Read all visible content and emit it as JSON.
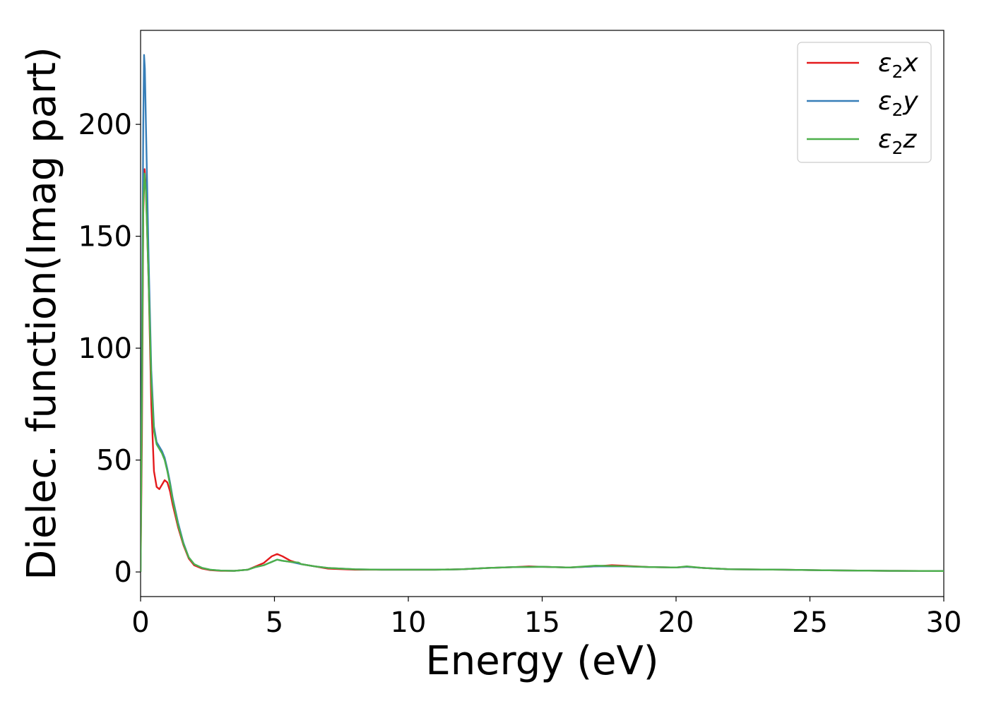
{
  "chart_data": {
    "type": "line",
    "title": "",
    "xlabel": "Energy (eV)",
    "ylabel": "Dielec. function(Imag part)",
    "xlim": [
      0,
      30
    ],
    "ylim": [
      -11,
      242
    ],
    "xticks": [
      0,
      5,
      10,
      15,
      20,
      25,
      30
    ],
    "xtick_labels": [
      "0",
      "5",
      "10",
      "15",
      "20",
      "25",
      "30"
    ],
    "yticks": [
      0,
      50,
      100,
      150,
      200
    ],
    "ytick_labels": [
      "0",
      "50",
      "100",
      "150",
      "200"
    ],
    "grid": false,
    "legend_position": "top-right",
    "series": [
      {
        "name": "ε₂x",
        "legend_main": "ε",
        "legend_sub": "2",
        "legend_suffix": "x",
        "color": "#e41a1c",
        "points": [
          [
            0,
            0
          ],
          [
            0.05,
            60
          ],
          [
            0.1,
            160
          ],
          [
            0.15,
            180
          ],
          [
            0.2,
            172
          ],
          [
            0.3,
            130
          ],
          [
            0.4,
            75
          ],
          [
            0.5,
            45
          ],
          [
            0.6,
            38
          ],
          [
            0.7,
            37
          ],
          [
            0.8,
            39
          ],
          [
            0.9,
            41
          ],
          [
            1.0,
            40
          ],
          [
            1.1,
            36
          ],
          [
            1.2,
            30
          ],
          [
            1.4,
            20
          ],
          [
            1.6,
            12
          ],
          [
            1.8,
            6
          ],
          [
            2.0,
            3
          ],
          [
            2.3,
            1.5
          ],
          [
            2.6,
            0.8
          ],
          [
            3.0,
            0.5
          ],
          [
            3.5,
            0.5
          ],
          [
            4.0,
            1
          ],
          [
            4.3,
            2.5
          ],
          [
            4.6,
            4
          ],
          [
            4.9,
            7
          ],
          [
            5.1,
            8
          ],
          [
            5.3,
            7
          ],
          [
            5.6,
            5
          ],
          [
            6.0,
            3.5
          ],
          [
            6.5,
            2.5
          ],
          [
            7.0,
            1.5
          ],
          [
            8.0,
            1
          ],
          [
            9.0,
            1
          ],
          [
            10.0,
            1
          ],
          [
            11.0,
            1
          ],
          [
            12.0,
            1.2
          ],
          [
            13.0,
            1.8
          ],
          [
            14.0,
            2.2
          ],
          [
            14.5,
            2.5
          ],
          [
            15.0,
            2.3
          ],
          [
            16.0,
            2
          ],
          [
            17.0,
            2.5
          ],
          [
            17.6,
            3
          ],
          [
            18.0,
            2.8
          ],
          [
            19.0,
            2.2
          ],
          [
            20.0,
            2
          ],
          [
            20.4,
            2.3
          ],
          [
            21.0,
            1.8
          ],
          [
            22.0,
            1.2
          ],
          [
            24.0,
            1
          ],
          [
            26.0,
            0.7
          ],
          [
            28.0,
            0.5
          ],
          [
            30.0,
            0.4
          ]
        ]
      },
      {
        "name": "ε₂y",
        "legend_main": "ε",
        "legend_sub": "2",
        "legend_suffix": "y",
        "color": "#377eb8",
        "points": [
          [
            0,
            0
          ],
          [
            0.05,
            100
          ],
          [
            0.1,
            200
          ],
          [
            0.13,
            231
          ],
          [
            0.16,
            225
          ],
          [
            0.2,
            200
          ],
          [
            0.3,
            140
          ],
          [
            0.4,
            90
          ],
          [
            0.5,
            65
          ],
          [
            0.6,
            58
          ],
          [
            0.7,
            56
          ],
          [
            0.8,
            54
          ],
          [
            0.9,
            51
          ],
          [
            1.0,
            46
          ],
          [
            1.1,
            40
          ],
          [
            1.2,
            33
          ],
          [
            1.4,
            22
          ],
          [
            1.6,
            13
          ],
          [
            1.8,
            6.5
          ],
          [
            2.0,
            3.5
          ],
          [
            2.3,
            1.8
          ],
          [
            2.6,
            1
          ],
          [
            3.0,
            0.6
          ],
          [
            3.5,
            0.5
          ],
          [
            4.0,
            1
          ],
          [
            4.3,
            2.2
          ],
          [
            4.6,
            3
          ],
          [
            4.9,
            4.5
          ],
          [
            5.1,
            5.5
          ],
          [
            5.3,
            5
          ],
          [
            5.6,
            4.5
          ],
          [
            6.0,
            3.5
          ],
          [
            6.5,
            2.5
          ],
          [
            7.0,
            1.8
          ],
          [
            8.0,
            1.2
          ],
          [
            9.0,
            1
          ],
          [
            10.0,
            1
          ],
          [
            11.0,
            1
          ],
          [
            12.0,
            1.2
          ],
          [
            13.0,
            1.8
          ],
          [
            14.0,
            2.2
          ],
          [
            15.0,
            2.3
          ],
          [
            16.0,
            2
          ],
          [
            17.0,
            2.5
          ],
          [
            18.0,
            2.5
          ],
          [
            19.0,
            2.2
          ],
          [
            20.0,
            2
          ],
          [
            20.4,
            2.3
          ],
          [
            21.0,
            1.8
          ],
          [
            22.0,
            1.2
          ],
          [
            24.0,
            1
          ],
          [
            26.0,
            0.7
          ],
          [
            28.0,
            0.5
          ],
          [
            30.0,
            0.4
          ]
        ]
      },
      {
        "name": "ε₂z",
        "legend_main": "ε",
        "legend_sub": "2",
        "legend_suffix": "z",
        "color": "#4daf4a",
        "points": [
          [
            0,
            0
          ],
          [
            0.05,
            80
          ],
          [
            0.1,
            165
          ],
          [
            0.15,
            178
          ],
          [
            0.2,
            170
          ],
          [
            0.3,
            130
          ],
          [
            0.4,
            85
          ],
          [
            0.5,
            63
          ],
          [
            0.6,
            57
          ],
          [
            0.7,
            55
          ],
          [
            0.8,
            53
          ],
          [
            0.9,
            50
          ],
          [
            1.0,
            45
          ],
          [
            1.1,
            39
          ],
          [
            1.2,
            32
          ],
          [
            1.4,
            21
          ],
          [
            1.6,
            12.5
          ],
          [
            1.8,
            6.5
          ],
          [
            2.0,
            3.5
          ],
          [
            2.3,
            1.8
          ],
          [
            2.6,
            1
          ],
          [
            3.0,
            0.6
          ],
          [
            3.5,
            0.5
          ],
          [
            4.0,
            1
          ],
          [
            4.3,
            2.2
          ],
          [
            4.6,
            3
          ],
          [
            4.9,
            4.5
          ],
          [
            5.1,
            5.5
          ],
          [
            5.3,
            5
          ],
          [
            5.6,
            4.5
          ],
          [
            5.9,
            4.2
          ],
          [
            6.0,
            3.5
          ],
          [
            6.5,
            2.5
          ],
          [
            7.0,
            1.8
          ],
          [
            8.0,
            1.2
          ],
          [
            9.0,
            1
          ],
          [
            10.0,
            1
          ],
          [
            11.0,
            1
          ],
          [
            12.0,
            1.2
          ],
          [
            13.0,
            1.8
          ],
          [
            14.0,
            2.2
          ],
          [
            15.0,
            2.3
          ],
          [
            16.0,
            2
          ],
          [
            17.0,
            2.8
          ],
          [
            18.0,
            2.6
          ],
          [
            19.0,
            2.2
          ],
          [
            20.0,
            2
          ],
          [
            20.4,
            2.5
          ],
          [
            21.0,
            1.8
          ],
          [
            22.0,
            1.2
          ],
          [
            24.0,
            1
          ],
          [
            26.0,
            0.7
          ],
          [
            28.0,
            0.5
          ],
          [
            30.0,
            0.4
          ]
        ]
      }
    ]
  }
}
